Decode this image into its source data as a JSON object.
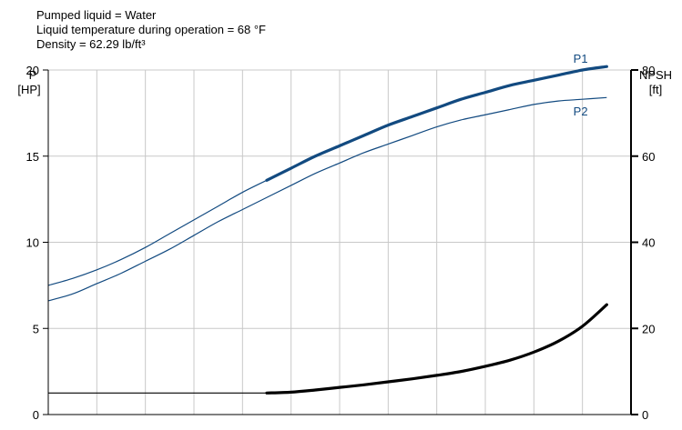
{
  "info_lines": [
    "Pumped liquid = Water",
    "Liquid temperature during operation = 68 °F",
    "Density = 62.29 lb/ft³"
  ],
  "chart_data": {
    "type": "line",
    "x_tick_count": 12,
    "grid": true,
    "y_left": {
      "label_top": "P",
      "label_unit": "[HP]",
      "ylim": [
        0,
        20
      ],
      "ticks": [
        0,
        5,
        10,
        15,
        20
      ]
    },
    "y_right": {
      "label_top": "NPSH",
      "label_unit": "[ft]",
      "ylim": [
        0,
        80
      ],
      "ticks": [
        0,
        20,
        40,
        60,
        80
      ]
    },
    "series": [
      {
        "name": "P1",
        "axis": "left",
        "color": "#124a80",
        "x": [
          0,
          0.5,
          1,
          1.5,
          2,
          2.5,
          3,
          3.5,
          4,
          4.5,
          5,
          5.5,
          6,
          6.5,
          7,
          7.5,
          8,
          8.5,
          9,
          9.5,
          10,
          10.5,
          11,
          11.5
        ],
        "values": [
          7.5,
          7.9,
          8.4,
          9.0,
          9.7,
          10.5,
          11.3,
          12.1,
          12.9,
          13.6,
          14.3,
          15.0,
          15.6,
          16.2,
          16.8,
          17.3,
          17.8,
          18.3,
          18.7,
          19.1,
          19.4,
          19.7,
          20.0,
          20.2
        ],
        "bold_from": 4.5,
        "label_near_index": 22
      },
      {
        "name": "P2",
        "axis": "left",
        "color": "#124a80",
        "x": [
          0,
          0.5,
          1,
          1.5,
          2,
          2.5,
          3,
          3.5,
          4,
          4.5,
          5,
          5.5,
          6,
          6.5,
          7,
          7.5,
          8,
          8.5,
          9,
          9.5,
          10,
          10.5,
          11,
          11.5
        ],
        "values": [
          6.6,
          7.0,
          7.6,
          8.2,
          8.9,
          9.6,
          10.4,
          11.2,
          11.9,
          12.6,
          13.3,
          14.0,
          14.6,
          15.2,
          15.7,
          16.2,
          16.7,
          17.1,
          17.4,
          17.7,
          18.0,
          18.2,
          18.3,
          18.4
        ],
        "bold_from": 99,
        "label_near_index": 22
      },
      {
        "name": "NPSH",
        "axis": "right",
        "color": "#000000",
        "x": [
          0,
          4.5,
          5,
          5.5,
          6,
          6.5,
          7,
          7.5,
          8,
          8.5,
          9,
          9.5,
          10,
          10.5,
          11,
          11.5
        ],
        "values": [
          5.0,
          5.0,
          5.2,
          5.7,
          6.3,
          6.9,
          7.6,
          8.3,
          9.1,
          10.0,
          11.2,
          12.6,
          14.5,
          17.0,
          20.5,
          25.5
        ],
        "bold_from": 4.5
      }
    ]
  }
}
